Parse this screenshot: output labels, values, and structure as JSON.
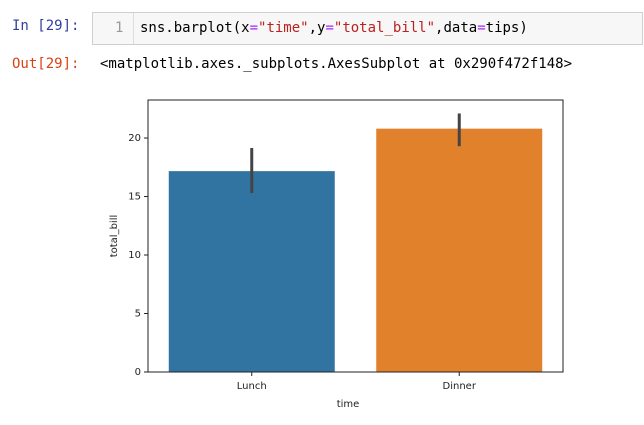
{
  "cell": {
    "in_prompt": "In [29]:",
    "line_number": "1",
    "code": [
      {
        "text": "sns.barplot(x",
        "color": "#000000"
      },
      {
        "text": "=",
        "color": "#aa22ff"
      },
      {
        "text": "\"time\"",
        "color": "#ba2121"
      },
      {
        "text": ",y",
        "color": "#000000"
      },
      {
        "text": "=",
        "color": "#aa22ff"
      },
      {
        "text": "\"total_bill\"",
        "color": "#ba2121"
      },
      {
        "text": ",data",
        "color": "#000000"
      },
      {
        "text": "=",
        "color": "#aa22ff"
      },
      {
        "text": "tips)",
        "color": "#000000"
      }
    ],
    "out_prompt": "Out[29]:",
    "output": "<matplotlib.axes._subplots.AxesSubplot at 0x290f472f148>"
  },
  "chart_data": {
    "type": "bar",
    "x_label": "time",
    "y_label": "total_bill",
    "categories": [
      "Lunch",
      "Dinner"
    ],
    "values": [
      17.17,
      20.8
    ],
    "ci_low": [
      15.3,
      19.3
    ],
    "ci_high": [
      19.15,
      22.1
    ],
    "colors": [
      "#3274a1",
      "#e1812c"
    ],
    "ylim": [
      0,
      23.25
    ],
    "yticks": [
      0,
      5,
      10,
      15,
      20
    ]
  }
}
